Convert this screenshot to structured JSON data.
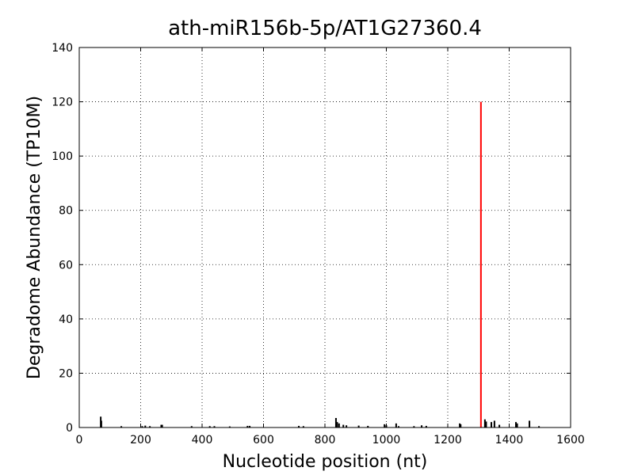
{
  "chart_data": {
    "type": "stem",
    "title": "ath-miR156b-5p/AT1G27360.4",
    "x_label": "Nucleotide position (nt)",
    "y_label": "Degradome Abundance (TP10M)",
    "series": [
      {
        "color": "#000000",
        "x": [
          70,
          72,
          137,
          205,
          215,
          230,
          267,
          270,
          366,
          425,
          440,
          490,
          548,
          555,
          715,
          730,
          836,
          840,
          846,
          860,
          870,
          910,
          940,
          994,
          1000,
          1032,
          1040,
          1090,
          1115,
          1130,
          1239,
          1242,
          1321,
          1325,
          1342,
          1352,
          1368,
          1422,
          1426,
          1466,
          1497
        ],
        "values": [
          4,
          2.5,
          0.5,
          0.5,
          0.7,
          0.5,
          1,
          1,
          0.5,
          0.5,
          0.5,
          0.4,
          0.6,
          0.6,
          0.6,
          0.5,
          3.5,
          2,
          1.5,
          1,
          0.8,
          0.7,
          0.6,
          1.2,
          0.8,
          1.5,
          0.5,
          0.5,
          0.8,
          0.6,
          1.5,
          1.2,
          3,
          2.2,
          2,
          2.5,
          1,
          2,
          1.5,
          2.5,
          0.5
        ]
      },
      {
        "color": "#ff0000",
        "x": [
          1308
        ],
        "values": [
          120
        ]
      }
    ],
    "xlim": [
      0,
      1600
    ],
    "xticks": [
      0,
      200,
      400,
      600,
      800,
      1000,
      1200,
      1400,
      1600
    ],
    "ylim": [
      0,
      140
    ],
    "yticks": [
      0,
      20,
      40,
      60,
      80,
      100,
      120,
      140
    ],
    "grid": true
  }
}
